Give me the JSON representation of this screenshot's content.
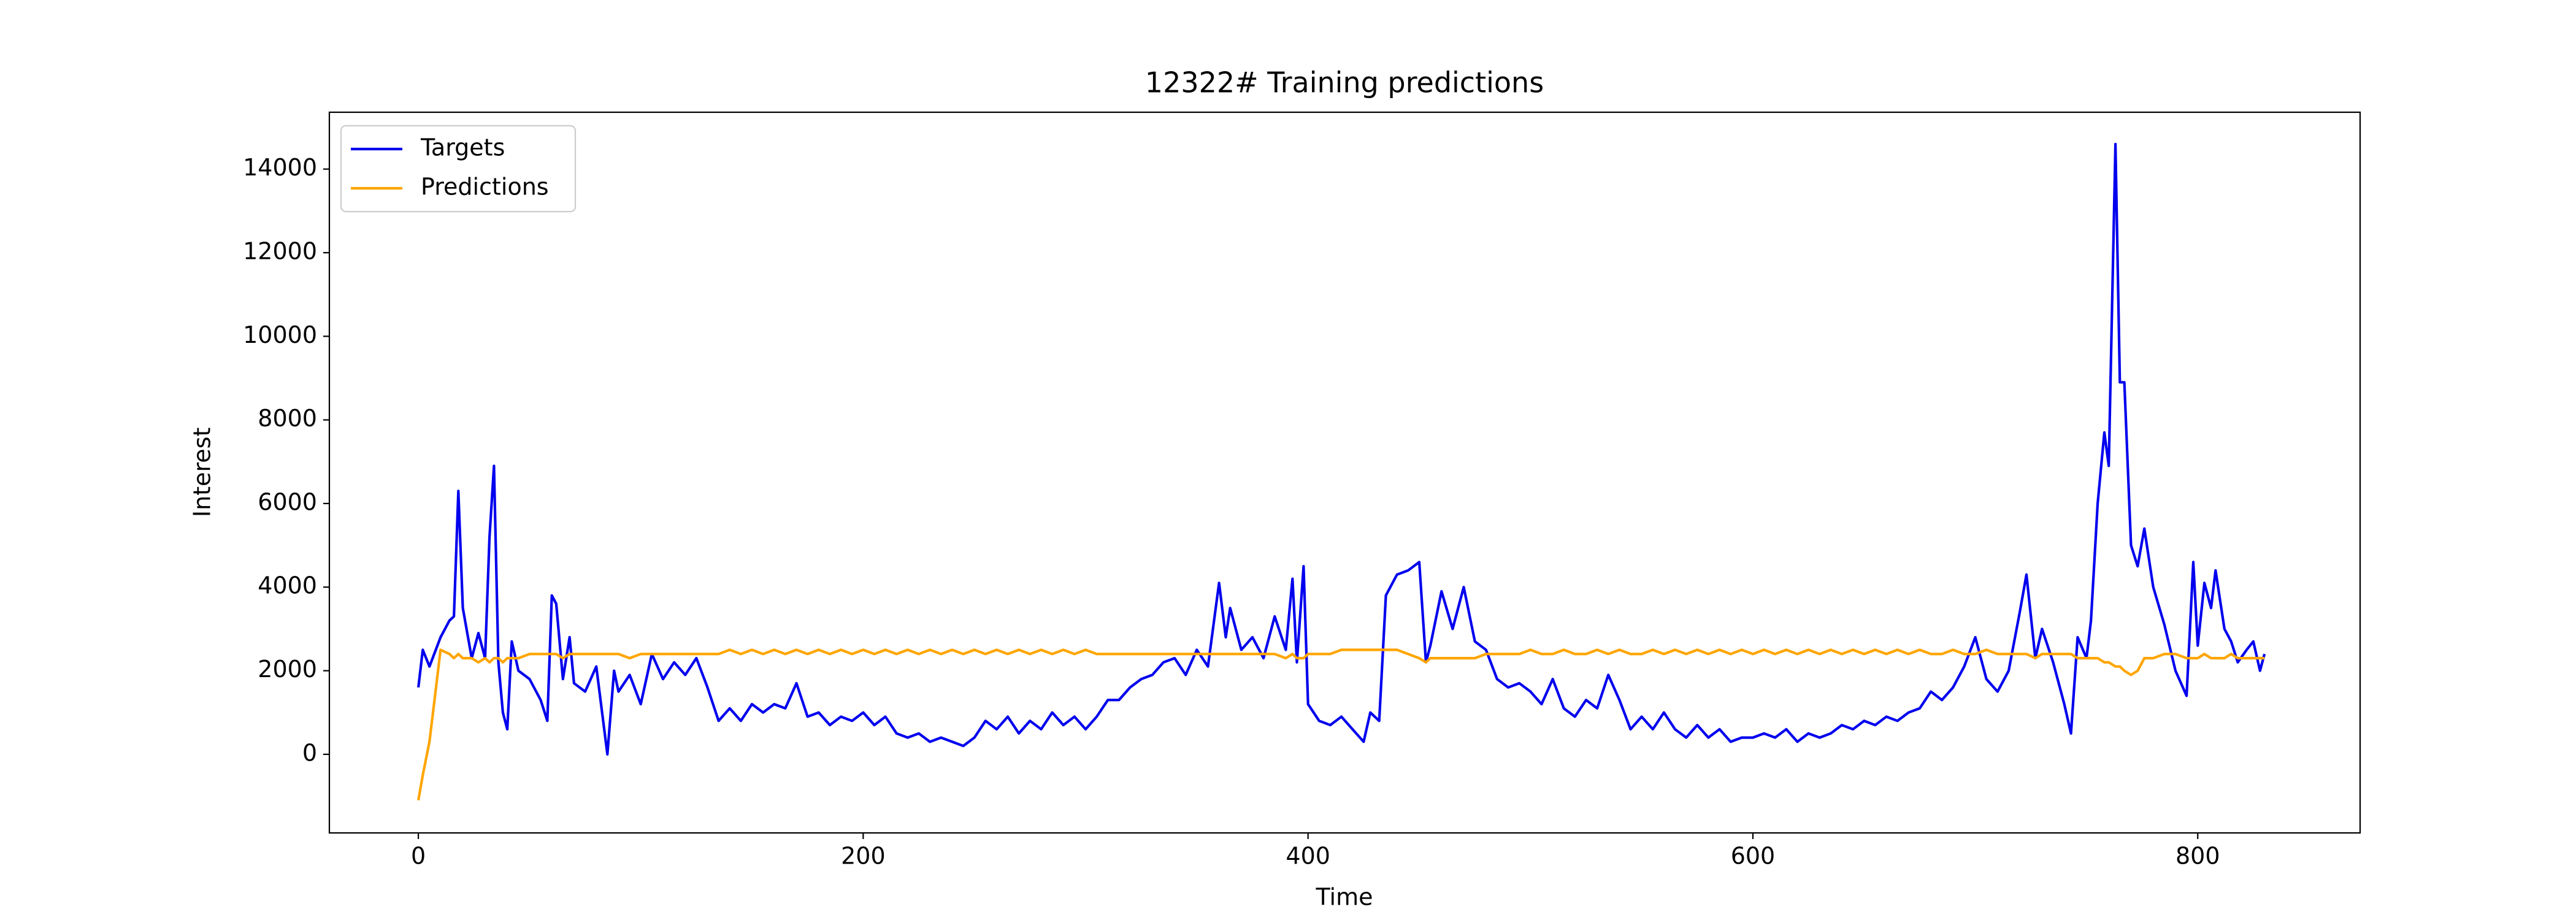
{
  "chart_data": {
    "type": "line",
    "title": "12322# Training predictions",
    "x_label": "Time",
    "y_label": "Interest",
    "xlim": [
      -40,
      873
    ],
    "ylim": [
      -1880,
      15360
    ],
    "xticks": [
      0,
      200,
      400,
      600,
      800
    ],
    "yticks": [
      0,
      2000,
      4000,
      6000,
      8000,
      10000,
      12000,
      14000
    ],
    "legend": "upper left",
    "x": [
      0,
      2,
      5,
      10,
      14,
      16,
      18,
      20,
      24,
      27,
      30,
      32,
      34,
      36,
      38,
      40,
      42,
      45,
      50,
      55,
      58,
      60,
      62,
      65,
      68,
      70,
      75,
      80,
      85,
      88,
      90,
      95,
      100,
      105,
      110,
      115,
      120,
      125,
      130,
      135,
      140,
      145,
      150,
      155,
      160,
      165,
      170,
      175,
      180,
      185,
      190,
      195,
      200,
      205,
      210,
      215,
      220,
      225,
      230,
      235,
      240,
      245,
      250,
      255,
      260,
      265,
      270,
      275,
      280,
      285,
      290,
      295,
      300,
      305,
      310,
      315,
      320,
      325,
      330,
      335,
      340,
      345,
      350,
      355,
      360,
      363,
      365,
      370,
      375,
      380,
      385,
      390,
      393,
      395,
      398,
      400,
      405,
      410,
      415,
      420,
      425,
      428,
      432,
      435,
      440,
      445,
      450,
      453,
      455,
      460,
      465,
      470,
      475,
      480,
      485,
      490,
      495,
      500,
      505,
      510,
      515,
      520,
      525,
      530,
      535,
      540,
      545,
      550,
      555,
      560,
      565,
      570,
      575,
      580,
      585,
      590,
      595,
      600,
      605,
      610,
      615,
      620,
      625,
      630,
      635,
      640,
      645,
      650,
      655,
      660,
      665,
      670,
      675,
      680,
      685,
      690,
      695,
      700,
      705,
      710,
      715,
      720,
      723,
      727,
      730,
      735,
      740,
      743,
      746,
      750,
      752,
      755,
      758,
      760,
      763,
      765,
      767,
      770,
      773,
      776,
      780,
      785,
      790,
      795,
      798,
      800,
      803,
      806,
      808,
      812,
      815,
      818,
      822,
      825,
      828,
      830
    ],
    "series": [
      {
        "name": "Targets",
        "color": "#0000ee",
        "values": [
          1600,
          2500,
          2100,
          2800,
          3200,
          3300,
          6300,
          3500,
          2300,
          2900,
          2300,
          5200,
          6900,
          2200,
          1000,
          600,
          2700,
          2000,
          1800,
          1300,
          800,
          3800,
          3600,
          1800,
          2800,
          1700,
          1500,
          2100,
          0,
          2000,
          1500,
          1900,
          1200,
          2400,
          1800,
          2200,
          1900,
          2300,
          1600,
          800,
          1100,
          800,
          1200,
          1000,
          1200,
          1100,
          1700,
          900,
          1000,
          700,
          900,
          800,
          1000,
          700,
          900,
          500,
          400,
          500,
          300,
          400,
          300,
          200,
          400,
          800,
          600,
          900,
          500,
          800,
          600,
          1000,
          700,
          900,
          600,
          900,
          1300,
          1300,
          1600,
          1800,
          1900,
          2200,
          2300,
          1900,
          2500,
          2100,
          4100,
          2800,
          3500,
          2500,
          2800,
          2300,
          3300,
          2500,
          4200,
          2200,
          4500,
          1200,
          800,
          700,
          900,
          600,
          300,
          1000,
          800,
          3800,
          4300,
          4400,
          4600,
          2200,
          2600,
          3900,
          3000,
          4000,
          2700,
          2500,
          1800,
          1600,
          1700,
          1500,
          1200,
          1800,
          1100,
          900,
          1300,
          1100,
          1900,
          1300,
          600,
          900,
          600,
          1000,
          600,
          400,
          700,
          400,
          600,
          300,
          400,
          400,
          500,
          400,
          600,
          300,
          500,
          400,
          500,
          700,
          600,
          800,
          700,
          900,
          800,
          1000,
          1100,
          1500,
          1300,
          1600,
          2100,
          2800,
          1800,
          1500,
          2000,
          3400,
          4300,
          2300,
          3000,
          2200,
          1200,
          500,
          2800,
          2300,
          3200,
          6000,
          7700,
          6900,
          14600,
          8900,
          8900,
          5000,
          4500,
          5400,
          4000,
          3100,
          2000,
          1400,
          4600,
          2600,
          4100,
          3500,
          4400,
          3000,
          2700,
          2200,
          2500,
          2700,
          2000,
          2400
        ]
      },
      {
        "name": "Predictions",
        "color": "#ffa500",
        "values": [
          -1100,
          -500,
          300,
          2500,
          2400,
          2300,
          2400,
          2300,
          2300,
          2200,
          2300,
          2200,
          2300,
          2300,
          2200,
          2300,
          2300,
          2300,
          2400,
          2400,
          2400,
          2400,
          2400,
          2300,
          2400,
          2400,
          2400,
          2400,
          2400,
          2400,
          2400,
          2300,
          2400,
          2400,
          2400,
          2400,
          2400,
          2400,
          2400,
          2400,
          2500,
          2400,
          2500,
          2400,
          2500,
          2400,
          2500,
          2400,
          2500,
          2400,
          2500,
          2400,
          2500,
          2400,
          2500,
          2400,
          2500,
          2400,
          2500,
          2400,
          2500,
          2400,
          2500,
          2400,
          2500,
          2400,
          2500,
          2400,
          2500,
          2400,
          2500,
          2400,
          2500,
          2400,
          2400,
          2400,
          2400,
          2400,
          2400,
          2400,
          2400,
          2400,
          2400,
          2400,
          2400,
          2400,
          2400,
          2400,
          2400,
          2400,
          2400,
          2300,
          2400,
          2300,
          2300,
          2400,
          2400,
          2400,
          2500,
          2500,
          2500,
          2500,
          2500,
          2500,
          2500,
          2400,
          2300,
          2200,
          2300,
          2300,
          2300,
          2300,
          2300,
          2400,
          2400,
          2400,
          2400,
          2500,
          2400,
          2400,
          2500,
          2400,
          2400,
          2500,
          2400,
          2500,
          2400,
          2400,
          2500,
          2400,
          2500,
          2400,
          2500,
          2400,
          2500,
          2400,
          2500,
          2400,
          2500,
          2400,
          2500,
          2400,
          2500,
          2400,
          2500,
          2400,
          2500,
          2400,
          2500,
          2400,
          2500,
          2400,
          2500,
          2400,
          2400,
          2500,
          2400,
          2400,
          2500,
          2400,
          2400,
          2400,
          2400,
          2300,
          2400,
          2400,
          2400,
          2400,
          2300,
          2300,
          2300,
          2300,
          2200,
          2200,
          2100,
          2100,
          2000,
          1900,
          2000,
          2300,
          2300,
          2400,
          2400,
          2300,
          2300,
          2300,
          2400,
          2300,
          2300,
          2300,
          2400,
          2300,
          2300,
          2300,
          2300,
          2300
        ]
      }
    ]
  }
}
